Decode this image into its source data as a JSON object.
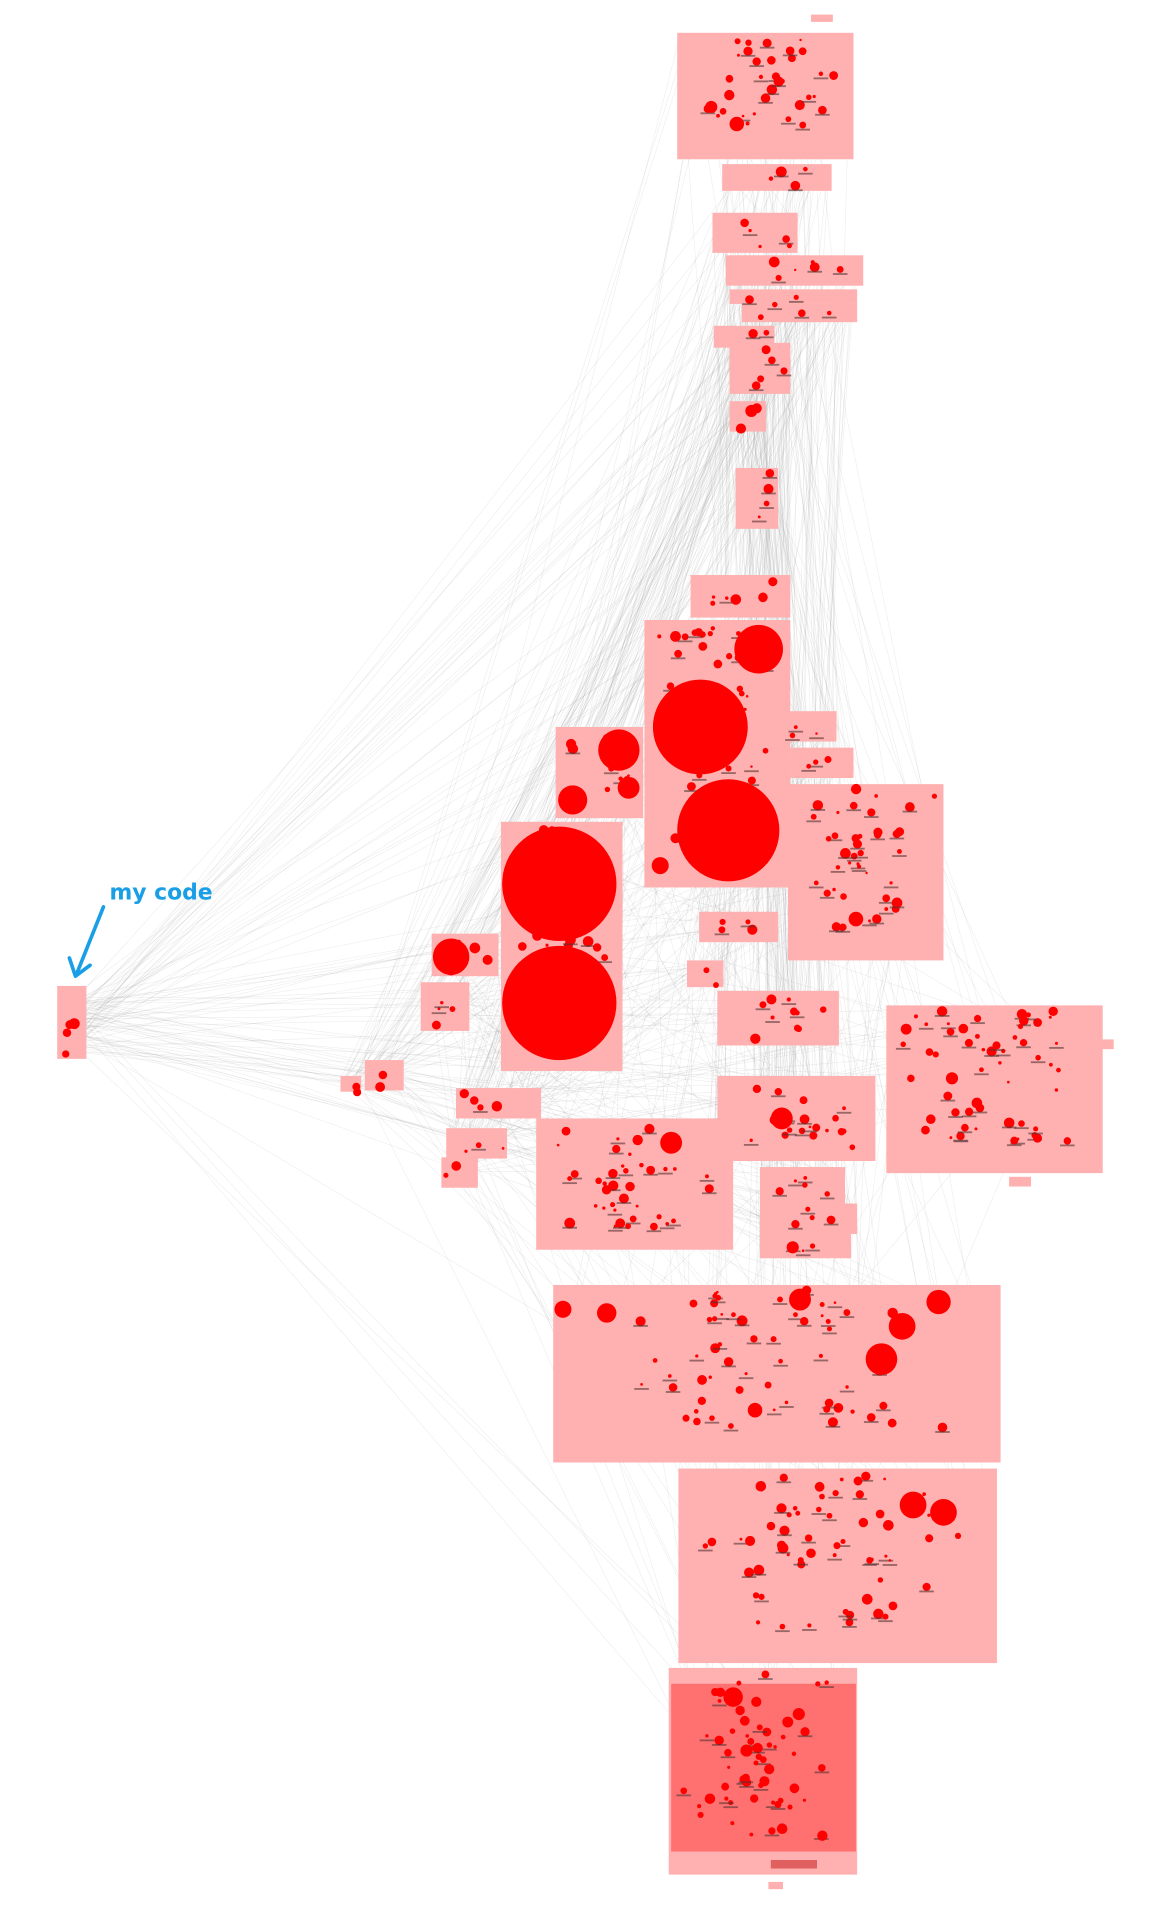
{
  "annotation": {
    "label": "my code"
  }
}
